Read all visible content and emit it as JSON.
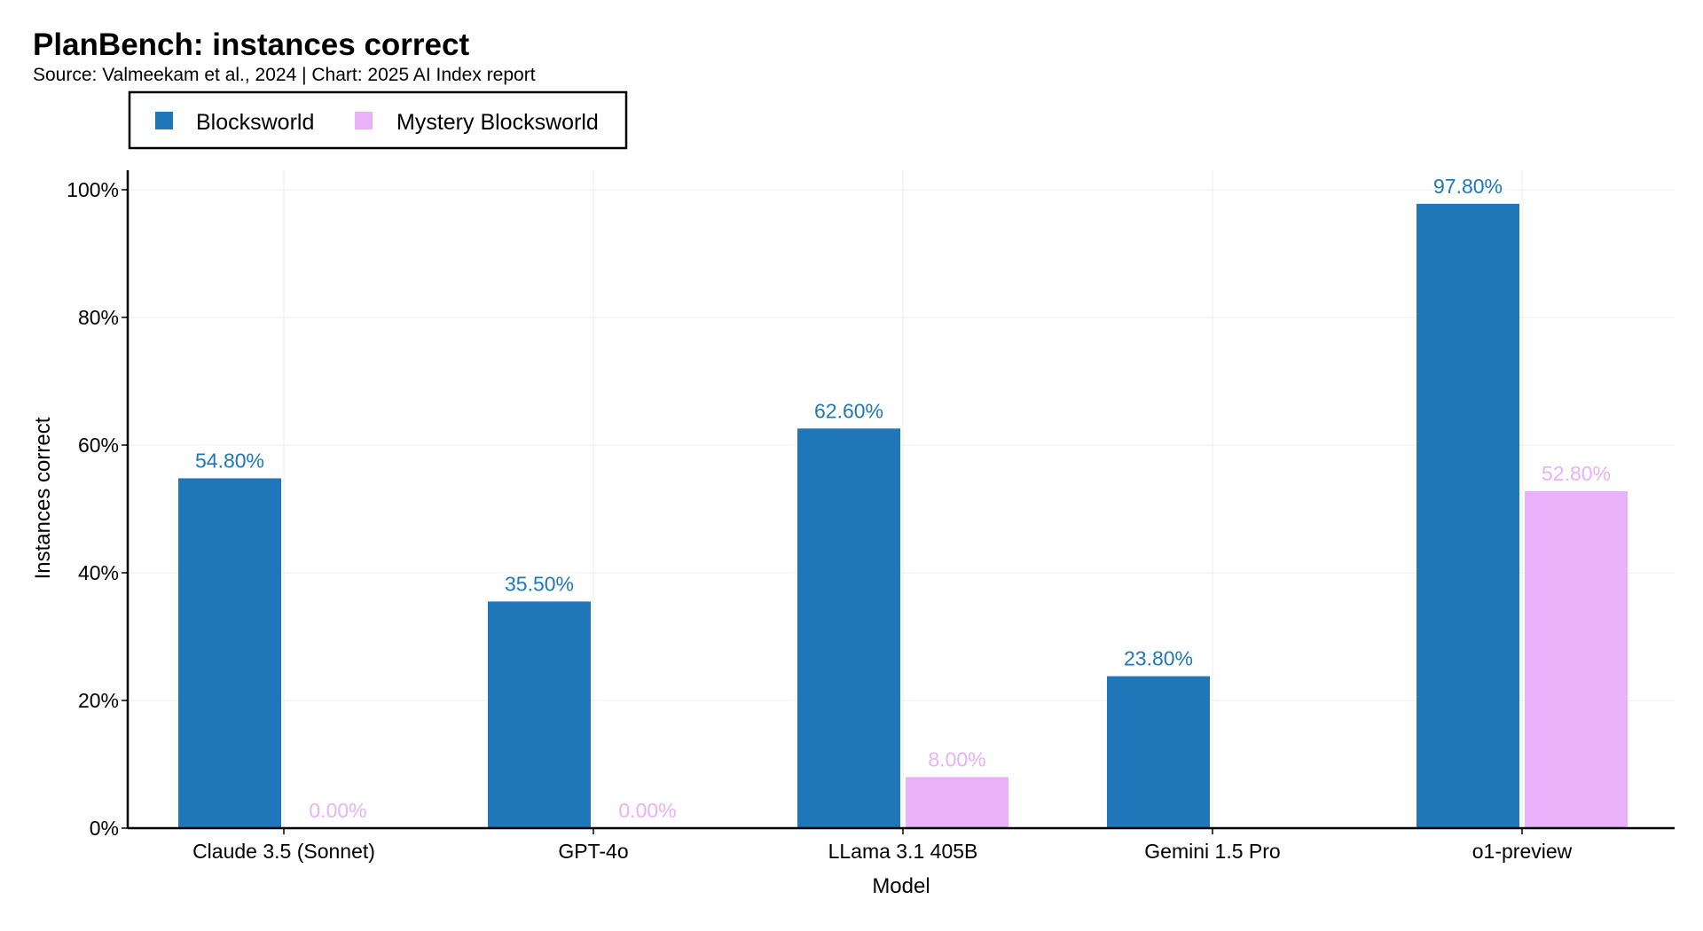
{
  "chart_data": {
    "type": "bar",
    "title": "PlanBench: instances correct",
    "subtitle": "Source: Valmeekam et al., 2024 | Chart: 2025 AI Index report",
    "xlabel": "Model",
    "ylabel": "Instances correct",
    "categories": [
      "Claude 3.5 (Sonnet)",
      "GPT-4o",
      "LLama 3.1 405B",
      "Gemini 1.5 Pro",
      "o1-preview"
    ],
    "series": [
      {
        "name": "Blocksworld",
        "color": "#1f77b9",
        "values": [
          54.8,
          35.5,
          62.6,
          23.8,
          97.8
        ],
        "labels": [
          "54.80%",
          "35.50%",
          "62.60%",
          "23.80%",
          "97.80%"
        ]
      },
      {
        "name": "Mystery Blocksworld",
        "color": "#e8b1fa",
        "values": [
          0.0,
          0.0,
          8.0,
          null,
          52.8
        ],
        "labels": [
          "0.00%",
          "0.00%",
          "8.00%",
          null,
          "52.80%"
        ]
      }
    ],
    "ylim": [
      0,
      100
    ],
    "yticks": [
      0,
      20,
      40,
      60,
      80,
      100
    ],
    "ytick_labels": [
      "0%",
      "20%",
      "40%",
      "60%",
      "80%",
      "100%"
    ],
    "grid": true,
    "legend_position": "top-left"
  }
}
